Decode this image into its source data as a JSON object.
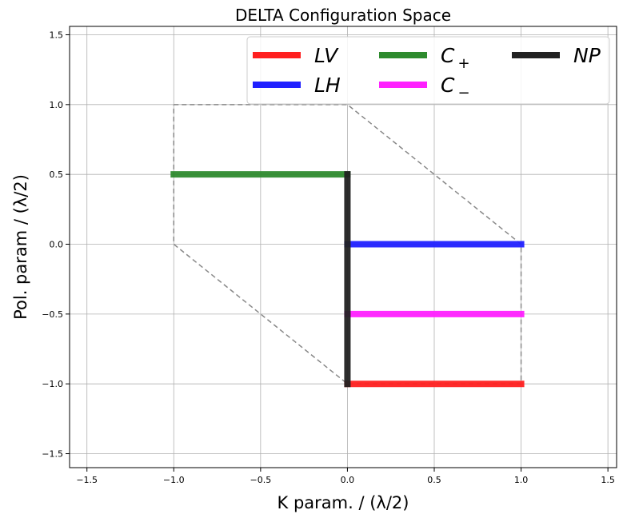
{
  "chart_data": {
    "type": "line",
    "title": "DELTA Configuration Space",
    "xlabel": "K param. / (λ/2)",
    "ylabel": "Pol. param / (λ/2)",
    "xlim": [
      -1.6,
      1.55
    ],
    "ylim": [
      -1.6,
      1.56
    ],
    "xticks": [
      -1.5,
      -1.0,
      -0.5,
      0.0,
      0.5,
      1.0,
      1.5
    ],
    "xtick_labels": [
      "−1.5",
      "−1.0",
      "−0.5",
      "0.0",
      "0.5",
      "1.0",
      "1.5"
    ],
    "yticks": [
      -1.5,
      -1.0,
      -0.5,
      0.0,
      0.5,
      1.0,
      1.5
    ],
    "ytick_labels": [
      "−1.5",
      "−1.0",
      "−0.5",
      "0.0",
      "0.5",
      "1.0",
      "1.5"
    ],
    "grid": true,
    "legend_position": "top-right",
    "series": [
      {
        "name": "LV",
        "label_main": "LV",
        "label_sub": "",
        "color": "#ff2020",
        "x": [
          0,
          1
        ],
        "y": [
          -1,
          -1
        ]
      },
      {
        "name": "LH",
        "label_main": "LH",
        "label_sub": "",
        "color": "#2020ff",
        "x": [
          0,
          1
        ],
        "y": [
          0,
          0
        ]
      },
      {
        "name": "C+",
        "label_main": "C",
        "label_sub": "+",
        "color": "#2e8b2e",
        "x": [
          -1,
          0
        ],
        "y": [
          0.5,
          0.5
        ]
      },
      {
        "name": "C−",
        "label_main": "C",
        "label_sub": "−",
        "color": "#ff20ff",
        "x": [
          0,
          1
        ],
        "y": [
          -0.5,
          -0.5
        ]
      },
      {
        "name": "NP",
        "label_main": "NP",
        "label_sub": "",
        "color": "#222222",
        "x": [
          0,
          0
        ],
        "y": [
          -1,
          0.5
        ]
      }
    ],
    "boundary": {
      "color": "#888888",
      "style": "dashed",
      "x": [
        -1,
        0,
        1,
        1,
        0,
        -1,
        -1
      ],
      "y": [
        1,
        1,
        0,
        -1,
        -1,
        0,
        1
      ]
    }
  }
}
